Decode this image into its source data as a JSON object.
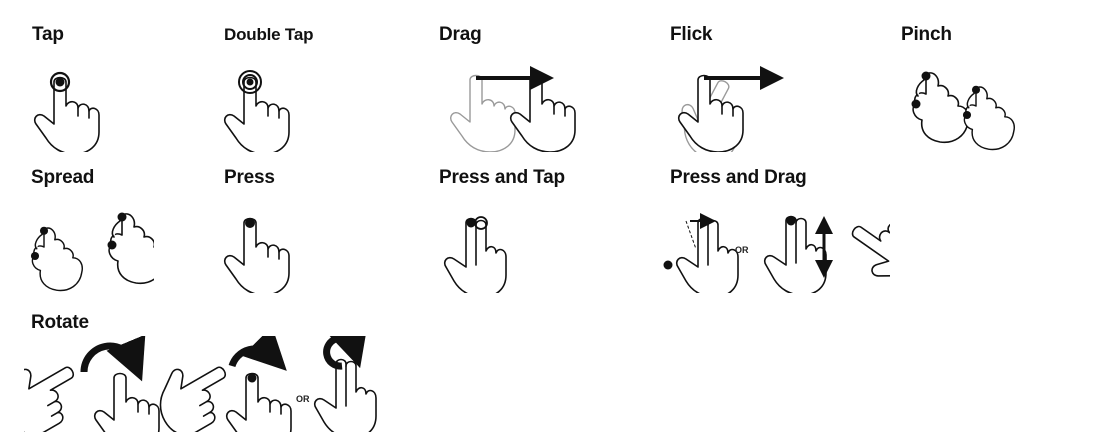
{
  "gestures": [
    {
      "id": "tap",
      "label": "Tap"
    },
    {
      "id": "double-tap",
      "label": "Double Tap"
    },
    {
      "id": "drag",
      "label": "Drag"
    },
    {
      "id": "flick",
      "label": "Flick"
    },
    {
      "id": "pinch",
      "label": "Pinch"
    },
    {
      "id": "spread",
      "label": "Spread"
    },
    {
      "id": "press",
      "label": "Press"
    },
    {
      "id": "press-and-tap",
      "label": "Press and Tap"
    },
    {
      "id": "press-and-drag",
      "label": "Press and Drag"
    },
    {
      "id": "rotate",
      "label": "Rotate"
    }
  ],
  "separator_text": "OR",
  "icons": {
    "hand": "hand-pointer-icon",
    "arrow": "arrow-icon",
    "rotate": "rotate-arrow-icon"
  }
}
